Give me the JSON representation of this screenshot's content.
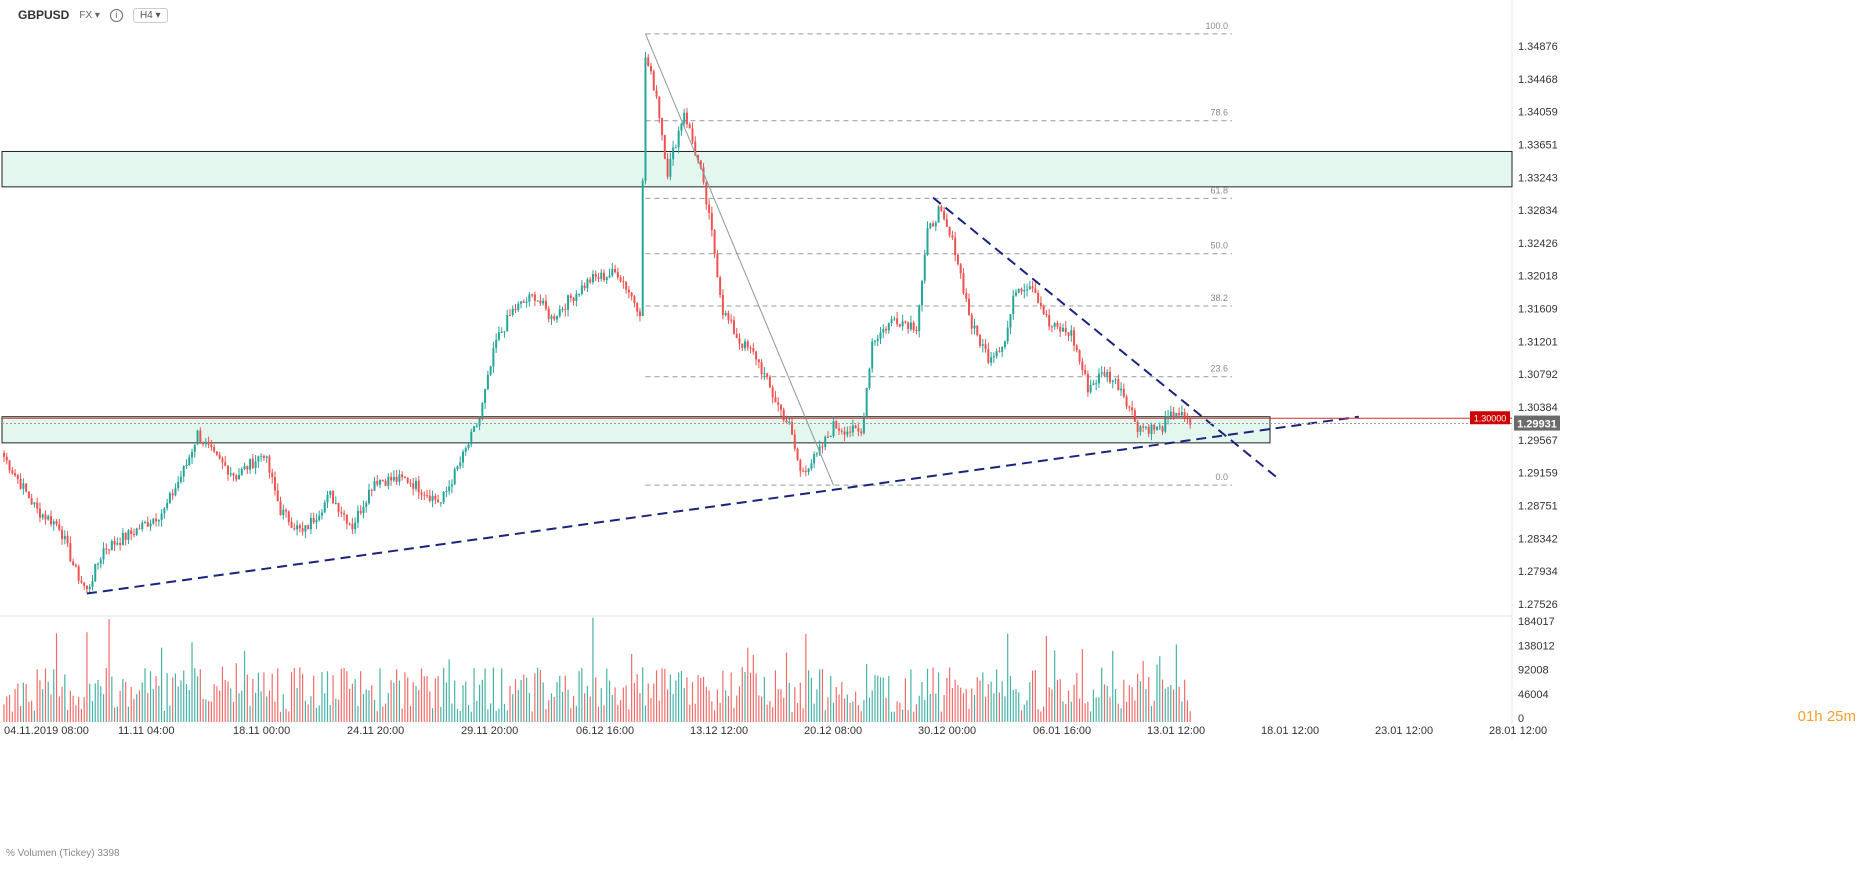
{
  "header": {
    "symbol": "GBPUSD",
    "market": "FX",
    "info_icon": "info-icon",
    "timeframe": "H4"
  },
  "countdown": "01h 25m",
  "volume_label": "% Volumen (Tickey) 3398",
  "current_price_label": "1.29931",
  "level_price_label": "1.30000",
  "colors": {
    "bull": "#26a69a",
    "bear": "#ef5350",
    "zone_fill": "#e3f7ef",
    "trend": "#1a237e",
    "fib": "#999999",
    "price_tag": "#6b6b6b",
    "level_tag": "#cc0000"
  },
  "chart_data": {
    "type": "candlestick",
    "price_ticks": [
      "1.34876",
      "1.34468",
      "1.34059",
      "1.33651",
      "1.33243",
      "1.32834",
      "1.32426",
      "1.32018",
      "1.31609",
      "1.31201",
      "1.30792",
      "1.30384",
      "1.29567",
      "1.29159",
      "1.28751",
      "1.28342",
      "1.27934",
      "1.27526"
    ],
    "volume_ticks": [
      "184017",
      "138012",
      "92008",
      "46004",
      "0"
    ],
    "time_labels": [
      "04.11.2019  08:00",
      "11.11  04:00",
      "18.11  00:00",
      "24.11  20:00",
      "29.11  20:00",
      "06.12  16:00",
      "13.12  12:00",
      "20.12  08:00",
      "30.12  00:00",
      "06.01  16:00",
      "13.01  12:00",
      "18.01  12:00",
      "23.01  12:00",
      "28.01  12:00"
    ],
    "ylim": [
      1.2748,
      1.3505
    ],
    "fibonacci": [
      {
        "label": "100.0",
        "price": 1.35
      },
      {
        "label": "78.6",
        "price": 1.3387
      },
      {
        "label": "61.8",
        "price": 1.3286
      },
      {
        "label": "50.0",
        "price": 1.3214
      },
      {
        "label": "38.2",
        "price": 1.3146
      },
      {
        "label": "23.6",
        "price": 1.3054
      },
      {
        "label": "0.0",
        "price": 1.2913
      }
    ],
    "zones": [
      {
        "from": 1.3301,
        "to": 1.3347
      },
      {
        "from": 1.2968,
        "to": 1.3002
      }
    ],
    "level": 1.3,
    "current": 1.29931,
    "anchors": [
      [
        0,
        1.295
      ],
      [
        12,
        1.288
      ],
      [
        20,
        1.286
      ],
      [
        26,
        1.28
      ],
      [
        30,
        1.2775
      ],
      [
        36,
        1.283
      ],
      [
        46,
        1.285
      ],
      [
        58,
        1.288
      ],
      [
        66,
        1.294
      ],
      [
        70,
        1.298
      ],
      [
        76,
        1.295
      ],
      [
        84,
        1.2925
      ],
      [
        94,
        1.2955
      ],
      [
        100,
        1.288
      ],
      [
        108,
        1.285
      ],
      [
        118,
        1.29
      ],
      [
        126,
        1.286
      ],
      [
        134,
        1.292
      ],
      [
        146,
        1.292
      ],
      [
        158,
        1.289
      ],
      [
        166,
        1.295
      ],
      [
        172,
        1.3
      ],
      [
        178,
        1.31
      ],
      [
        184,
        1.314
      ],
      [
        192,
        1.316
      ],
      [
        198,
        1.313
      ],
      [
        206,
        1.316
      ],
      [
        212,
        1.318
      ],
      [
        222,
        1.319
      ],
      [
        230,
        1.314
      ],
      [
        232,
        1.347
      ],
      [
        236,
        1.342
      ],
      [
        240,
        1.332
      ],
      [
        246,
        1.34
      ],
      [
        252,
        1.332
      ],
      [
        256,
        1.324
      ],
      [
        260,
        1.314
      ],
      [
        266,
        1.31
      ],
      [
        272,
        1.308
      ],
      [
        278,
        1.303
      ],
      [
        284,
        1.299
      ],
      [
        288,
        1.293
      ],
      [
        294,
        1.295
      ],
      [
        300,
        1.299
      ],
      [
        310,
        1.298
      ],
      [
        314,
        1.31
      ],
      [
        322,
        1.313
      ],
      [
        330,
        1.312
      ],
      [
        334,
        1.324
      ],
      [
        338,
        1.327
      ],
      [
        344,
        1.322
      ],
      [
        350,
        1.312
      ],
      [
        356,
        1.308
      ],
      [
        362,
        1.31
      ],
      [
        366,
        1.317
      ],
      [
        372,
        1.3175
      ],
      [
        378,
        1.312
      ],
      [
        386,
        1.311
      ],
      [
        392,
        1.304
      ],
      [
        398,
        1.306
      ],
      [
        404,
        1.304
      ],
      [
        410,
        1.299
      ],
      [
        418,
        1.2985
      ],
      [
        424,
        1.301
      ],
      [
        428,
        1.2993
      ]
    ],
    "overlays": {
      "fib_line": {
        "from": [
          232,
          1.35
        ],
        "to": [
          300,
          1.2913
        ]
      },
      "support_trend": {
        "from": [
          30,
          1.2772
        ],
        "to": [
          490,
          1.3002
        ]
      },
      "resistance_trend": {
        "from": [
          336,
          1.3287
        ],
        "to": [
          460,
          1.2924
        ]
      }
    }
  }
}
